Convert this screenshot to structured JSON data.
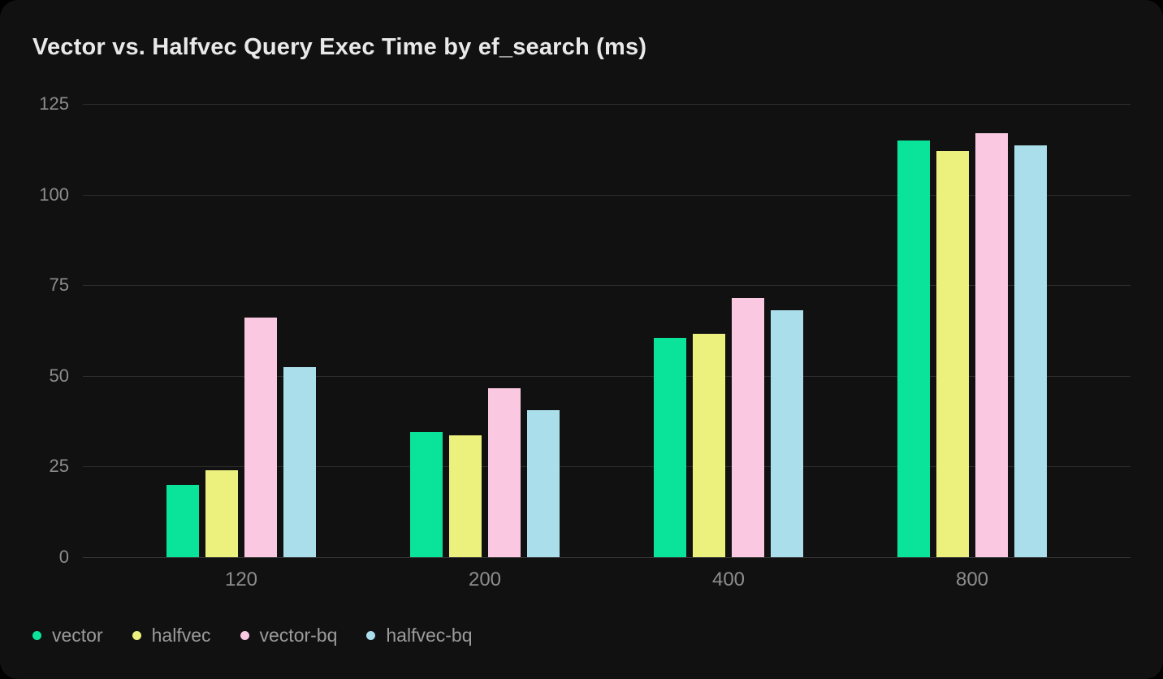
{
  "card": {
    "title": "Vector vs. Halfvec Query Exec Time by ef_search (ms)"
  },
  "chart_data": {
    "type": "bar",
    "title": "Vector vs. Halfvec Query Exec Time by ef_search (ms)",
    "categories": [
      "120",
      "200",
      "400",
      "800"
    ],
    "series": [
      {
        "name": "vector",
        "color": "#0ae49b",
        "values": [
          20,
          34.5,
          60.5,
          115
        ]
      },
      {
        "name": "halfvec",
        "color": "#ecf07c",
        "values": [
          24,
          33.5,
          61.5,
          112
        ]
      },
      {
        "name": "vector-bq",
        "color": "#fbc8e2",
        "values": [
          66,
          46.5,
          71.5,
          117
        ]
      },
      {
        "name": "halfvec-bq",
        "color": "#aadeeb",
        "values": [
          52.5,
          40.5,
          68,
          113.5
        ]
      }
    ],
    "xlabel": "",
    "ylabel": "",
    "ylim": [
      0,
      125
    ],
    "yticks": [
      0,
      25,
      50,
      75,
      100,
      125
    ],
    "grid": true,
    "legend_position": "bottom-left"
  },
  "colors": {
    "page_bg": "#000000",
    "card_bg": "#111112",
    "title_text": "#e9e9e9",
    "grid_line": "#2c2c2c",
    "baseline": "#353535",
    "tick_label": "#8d8d8d",
    "legend_label": "#9b9b9b"
  }
}
